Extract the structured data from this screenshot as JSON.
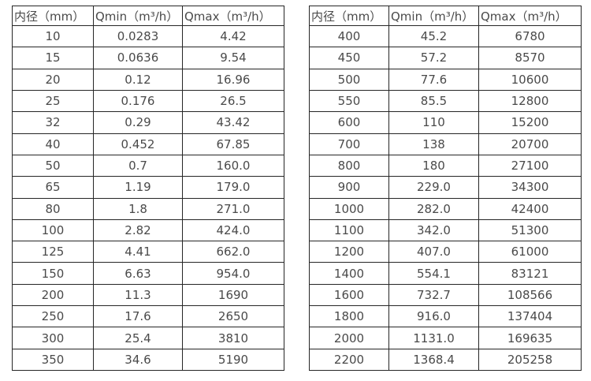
{
  "colors": {
    "background": "#ffffff",
    "border": "#262626",
    "text": "#4a4a4a"
  },
  "tables": [
    {
      "name": "flow-table-small-diameters",
      "headers": [
        "内径（mm）",
        "Qmin（m³/h）",
        "Qmax（m³/h）"
      ],
      "rows": [
        [
          "10",
          "0.0283",
          "4.42"
        ],
        [
          "15",
          "0.0636",
          "9.54"
        ],
        [
          "20",
          "0.12",
          "16.96"
        ],
        [
          "25",
          "0.176",
          "26.5"
        ],
        [
          "32",
          "0.29",
          "43.42"
        ],
        [
          "40",
          "0.452",
          "67.85"
        ],
        [
          "50",
          "0.7",
          "160.0"
        ],
        [
          "65",
          "1.19",
          "179.0"
        ],
        [
          "80",
          "1.8",
          "271.0"
        ],
        [
          "100",
          "2.82",
          "424.0"
        ],
        [
          "125",
          "4.41",
          "662.0"
        ],
        [
          "150",
          "6.63",
          "954.0"
        ],
        [
          "200",
          "11.3",
          "1690"
        ],
        [
          "250",
          "17.6",
          "2650"
        ],
        [
          "300",
          "25.4",
          "3810"
        ],
        [
          "350",
          "34.6",
          "5190"
        ]
      ]
    },
    {
      "name": "flow-table-large-diameters",
      "headers": [
        "内径（mm）",
        "Qmin（m³/h）",
        "Qmax（m³/h）"
      ],
      "rows": [
        [
          "400",
          "45.2",
          "6780"
        ],
        [
          "450",
          "57.2",
          "8570"
        ],
        [
          "500",
          "77.6",
          "10600"
        ],
        [
          "550",
          "85.5",
          "12800"
        ],
        [
          "600",
          "110",
          "15200"
        ],
        [
          "700",
          "138",
          "20700"
        ],
        [
          "800",
          "180",
          "27100"
        ],
        [
          "900",
          "229.0",
          "34300"
        ],
        [
          "1000",
          "282.0",
          "42400"
        ],
        [
          "1100",
          "342.0",
          "51300"
        ],
        [
          "1200",
          "407.0",
          "61000"
        ],
        [
          "1400",
          "554.1",
          "83121"
        ],
        [
          "1600",
          "732.7",
          "108566"
        ],
        [
          "1800",
          "916.0",
          "137404"
        ],
        [
          "2000",
          "1131.0",
          "169635"
        ],
        [
          "2200",
          "1368.4",
          "205258"
        ]
      ]
    }
  ]
}
